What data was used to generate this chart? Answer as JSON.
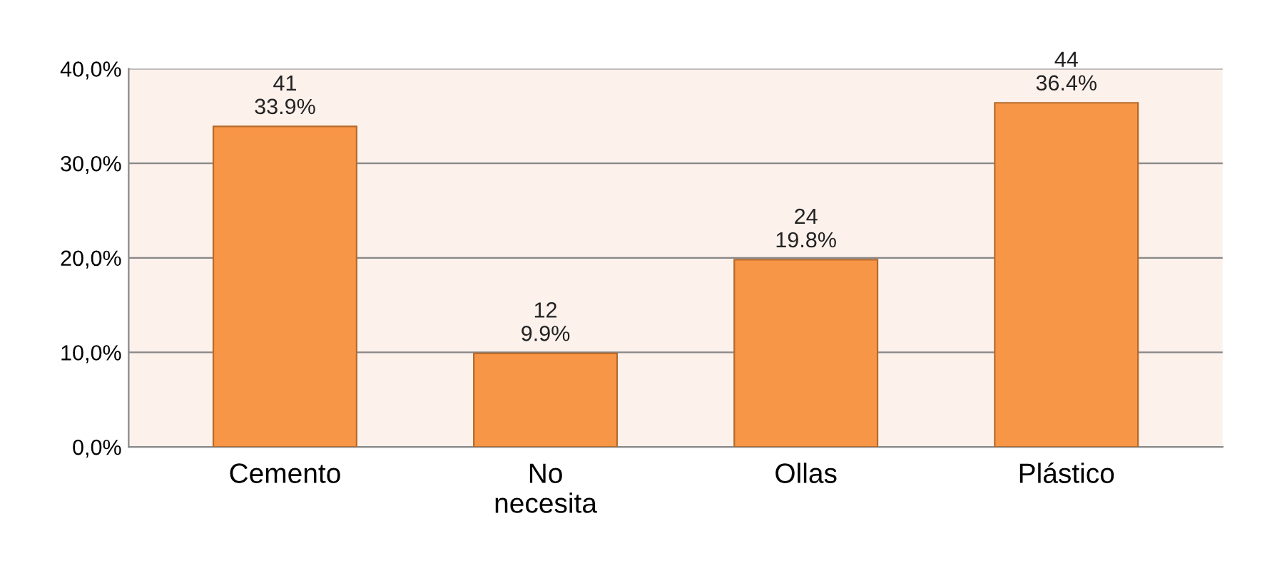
{
  "chart_data": {
    "type": "bar",
    "categories": [
      "Cemento",
      "No\nnecesita",
      "Ollas",
      "Plástico"
    ],
    "values": [
      33.9,
      9.9,
      19.8,
      36.4
    ],
    "value_labels": [
      "41\n33.9%",
      "12\n9.9%",
      "24\n19.8%",
      "44\n36.4%"
    ],
    "color": "#f79646",
    "ylim": [
      0,
      40
    ],
    "yticks": [
      {
        "value": 0,
        "label": "0,0%"
      },
      {
        "value": 10,
        "label": "10,0%"
      },
      {
        "value": 20,
        "label": "20,0%"
      },
      {
        "value": 30,
        "label": "30,0%"
      },
      {
        "value": 40,
        "label": "40,0%"
      }
    ],
    "grid": "y"
  }
}
